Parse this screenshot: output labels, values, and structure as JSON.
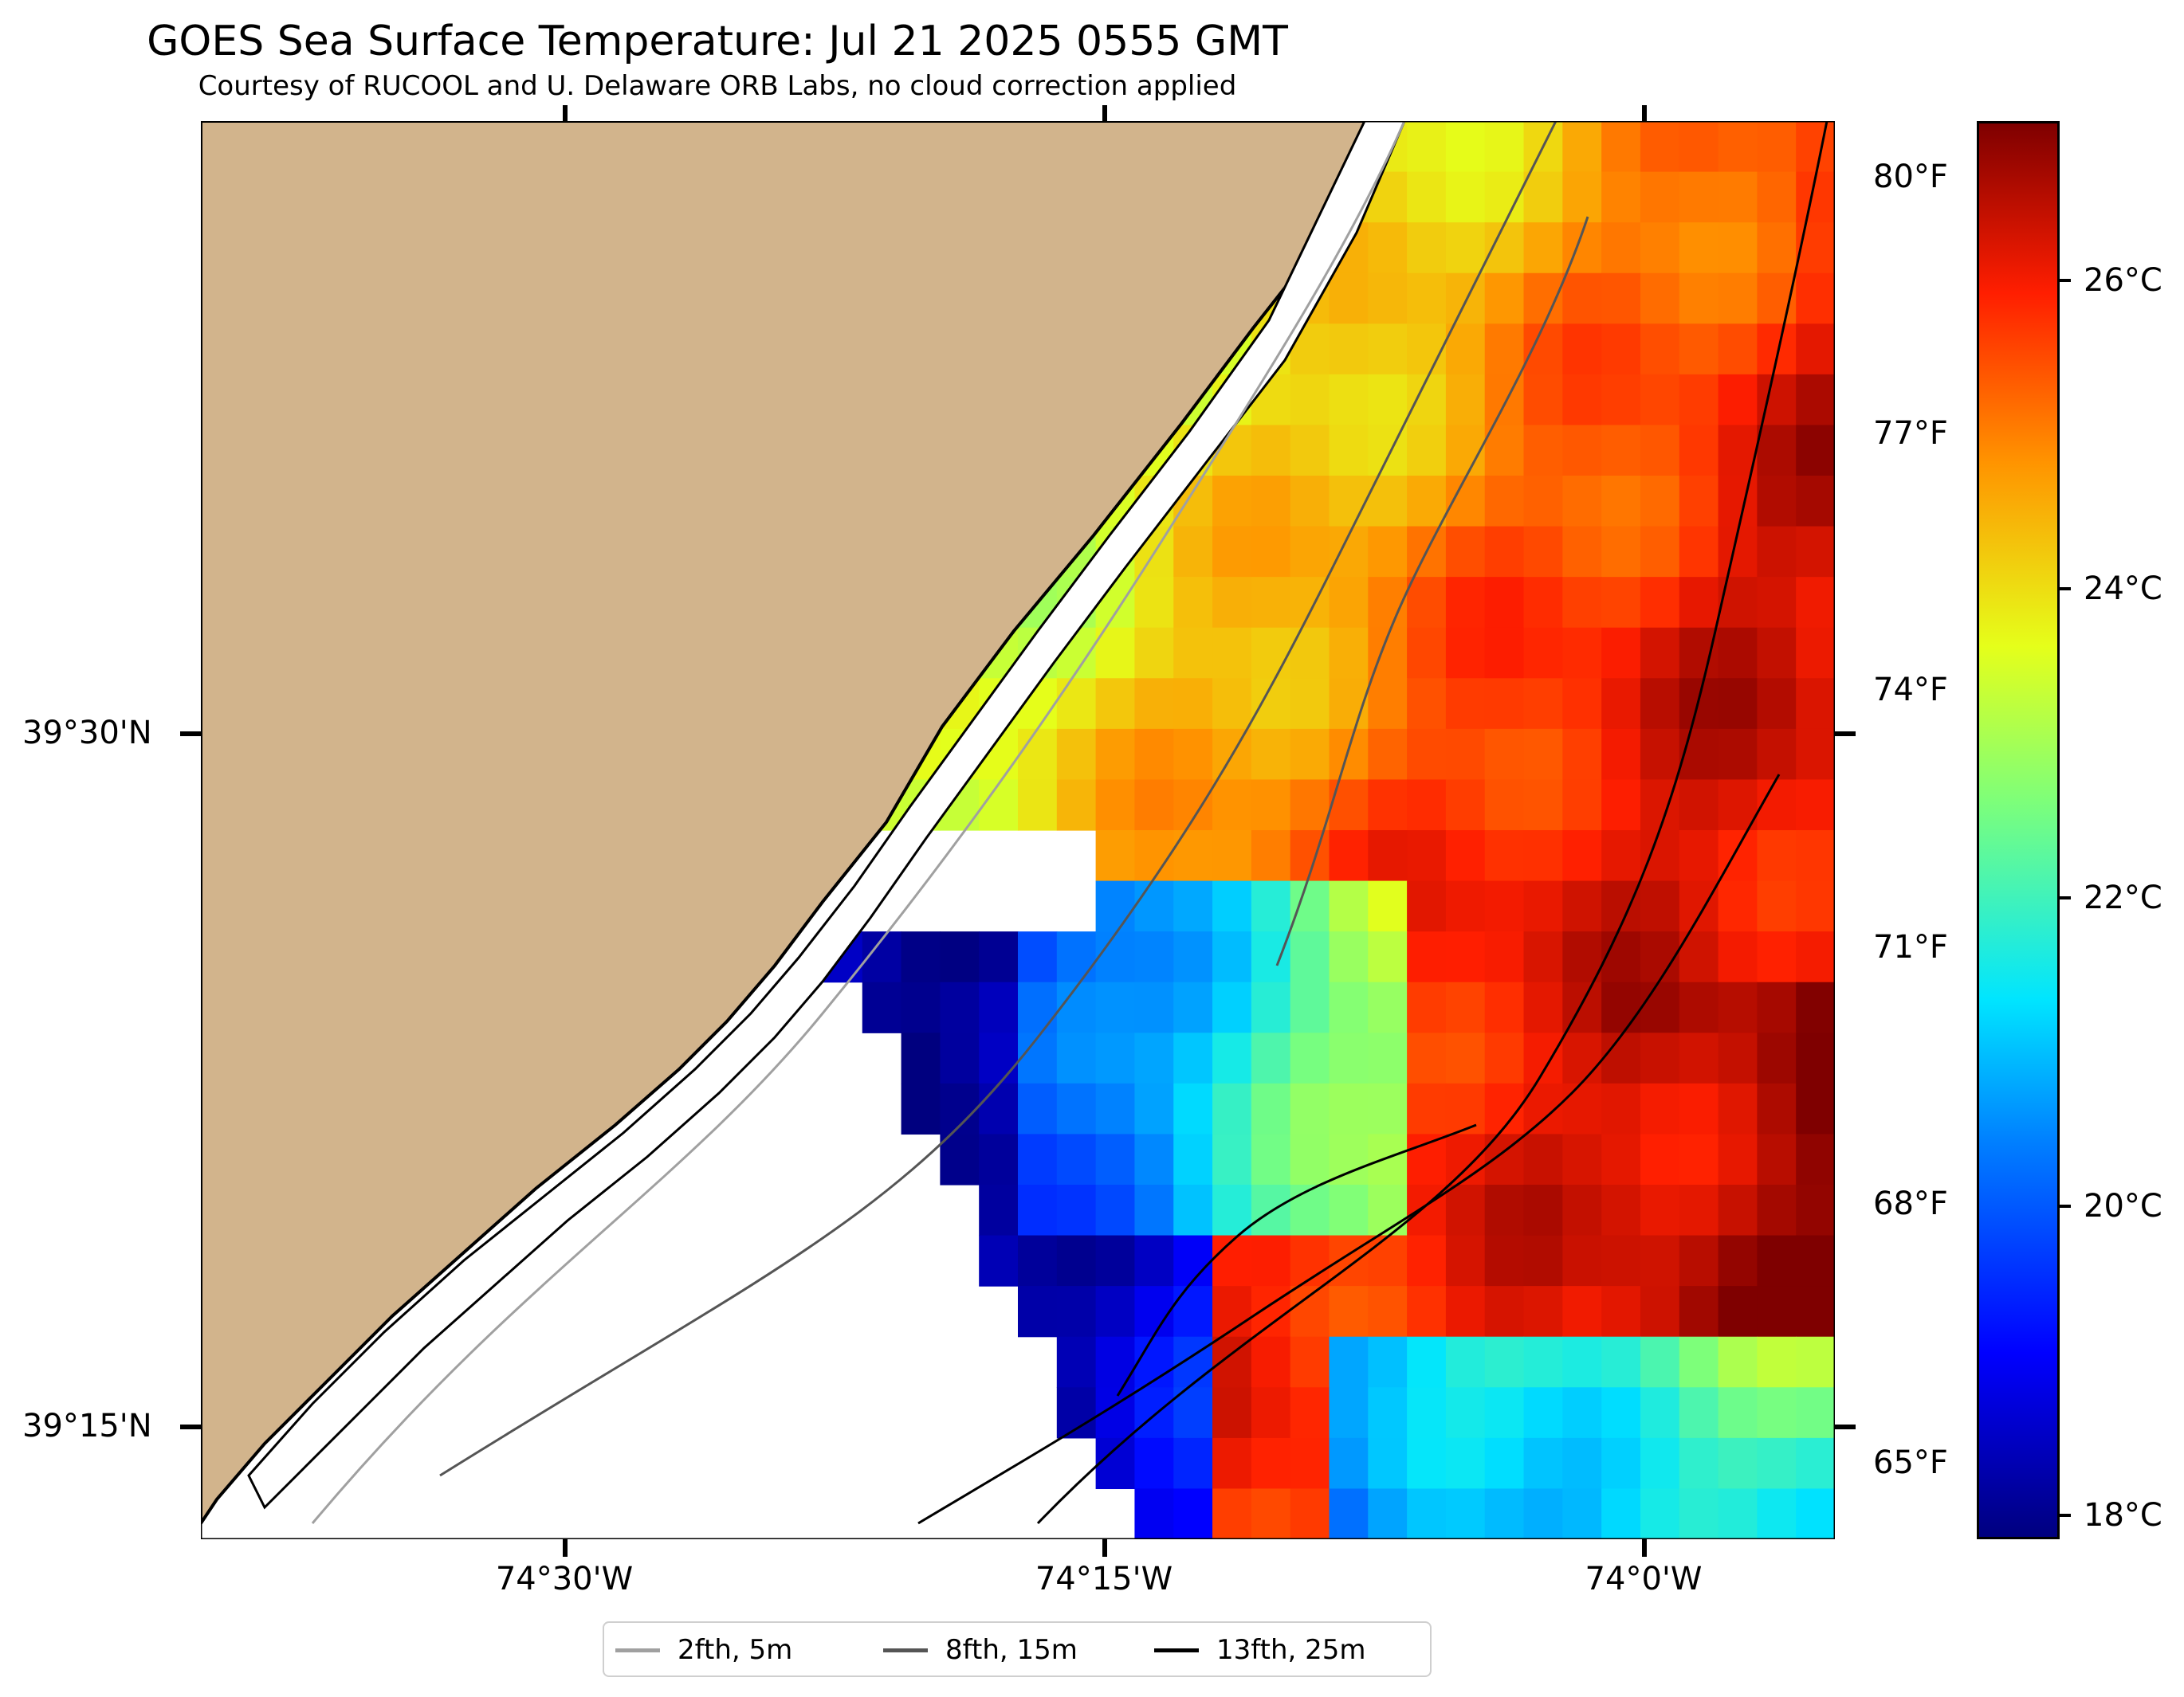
{
  "title": "GOES Sea Surface Temperature: Jul 21 2025 0555 GMT",
  "subtitle": "Courtesy of RUCOOL and U. Delaware ORB Labs, no cloud correction applied",
  "latitude_labels": [
    "39°30'N",
    "39°15'N"
  ],
  "longitude_labels": [
    "74°30'W",
    "74°15'W",
    "74°0'W"
  ],
  "colorbar": {
    "fahrenheit_labels": [
      "80°F",
      "77°F",
      "74°F",
      "71°F",
      "68°F",
      "65°F"
    ],
    "celsius_labels": [
      "26°C",
      "24°C",
      "22°C",
      "20°C",
      "18°C"
    ],
    "range_c": [
      17.8,
      27.2
    ],
    "colormap": "jet"
  },
  "legend": [
    {
      "label": "2fth, 5m",
      "color": "#a0a0a0"
    },
    {
      "label": "8fth, 15m",
      "color": "#555555"
    },
    {
      "label": "13fth, 25m",
      "color": "#000000"
    }
  ],
  "colors": {
    "land": "#d2b48c",
    "no_data": "#ffffff",
    "cold": "#000080"
  },
  "chart_data": {
    "type": "heatmap",
    "title": "GOES Sea Surface Temperature: Jul 21 2025 0555 GMT",
    "xlabel": "",
    "ylabel": "",
    "x_range": [
      "74°40'W",
      "73°55'W"
    ],
    "y_range": [
      "39°11'N",
      "39°43'N"
    ],
    "value_unit": "°C",
    "value_range": [
      17.8,
      27.2
    ],
    "regions": [
      {
        "area": "nearshore north of 39°30'N",
        "sst_c": [
          23.5,
          25.0
        ]
      },
      {
        "area": "offshore north of 39°30'N",
        "sst_c": [
          25.0,
          26.8
        ]
      },
      {
        "area": "nearshore 39°20'-39°27'N",
        "sst_c": [
          19.0,
          22.5
        ]
      },
      {
        "area": "shelf south of 39°20'N, west of 74°10'W",
        "sst_c": [
          17.8,
          18.2
        ]
      },
      {
        "area": "southeast corner",
        "sst_c": [
          20.5,
          23.5
        ]
      },
      {
        "area": "east of 74°0'W, 39°20'-39°27'N",
        "sst_c": [
          26.0,
          27.2
        ]
      }
    ]
  }
}
